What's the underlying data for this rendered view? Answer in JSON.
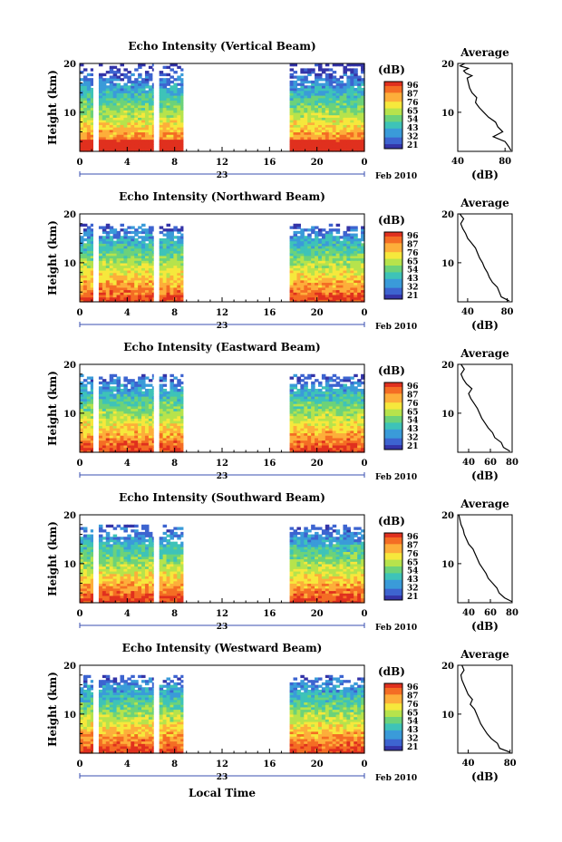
{
  "figure": {
    "xlabel": "Local Time",
    "date_label": "23",
    "month_label": "Feb 2010",
    "colorbar_unit": "(dB)",
    "colorbar_ticks": [
      "96",
      "87",
      "76",
      "65",
      "54",
      "43",
      "32",
      "21"
    ],
    "colorbar_colors": [
      "#e0301e",
      "#f46d24",
      "#fdae3a",
      "#f6e83c",
      "#b6e34c",
      "#6cd27a",
      "#3ec3b8",
      "#3a9bd9",
      "#3d64d0",
      "#3434a8"
    ],
    "avg_title": "Average",
    "avg_xlabel": "(dB)"
  },
  "chart_data": [
    {
      "type": "heatmap",
      "title": "Echo Intensity (Vertical Beam)",
      "ylabel": "Height (km)",
      "xlim": [
        0,
        24
      ],
      "ylim": [
        2,
        20
      ],
      "xticks": [
        "0",
        "4",
        "8",
        "12",
        "16",
        "20",
        "0"
      ],
      "yticks": [
        "20",
        "10"
      ],
      "data_segments": [
        [
          0,
          1.1
        ],
        [
          1.6,
          6.2
        ],
        [
          6.7,
          8.7
        ],
        [
          17.7,
          24
        ]
      ],
      "avg_profile": {
        "xlim": [
          40,
          86
        ],
        "xticks": [
          "40",
          "80"
        ],
        "ylim": [
          2,
          20
        ],
        "yticks": [
          "20",
          "10"
        ],
        "height_km": [
          2.2,
          3,
          4,
          5,
          6,
          7,
          8,
          9,
          10,
          11,
          12,
          13,
          14,
          15,
          16,
          17,
          17.5,
          18,
          18.5,
          19,
          19.5,
          20
        ],
        "intensity_db": [
          85,
          83,
          80,
          70,
          78,
          74,
          72,
          66,
          62,
          58,
          55,
          56,
          52,
          50,
          49,
          48,
          52,
          47,
          45,
          49,
          42,
          46
        ]
      }
    },
    {
      "type": "heatmap",
      "title": "Echo Intensity (Northward Beam)",
      "ylabel": "Height (km)",
      "xlim": [
        0,
        24
      ],
      "ylim": [
        2,
        20
      ],
      "xticks": [
        "0",
        "4",
        "8",
        "12",
        "16",
        "20",
        "0"
      ],
      "yticks": [
        "20",
        "10"
      ],
      "data_segments": [
        [
          0,
          1.1
        ],
        [
          1.6,
          6.2
        ],
        [
          6.7,
          8.7
        ],
        [
          17.7,
          24
        ]
      ],
      "avg_profile": {
        "xlim": [
          30,
          85
        ],
        "xticks": [
          "40",
          "80"
        ],
        "ylim": [
          2,
          20
        ],
        "yticks": [
          "20",
          "10"
        ],
        "height_km": [
          2.2,
          3,
          4,
          5,
          6,
          7,
          8,
          9,
          10,
          11,
          12,
          13,
          14,
          15,
          16,
          17,
          18,
          19,
          20
        ],
        "intensity_db": [
          82,
          74,
          72,
          70,
          65,
          62,
          60,
          57,
          55,
          52,
          50,
          48,
          44,
          40,
          38,
          35,
          33,
          36,
          32
        ]
      }
    },
    {
      "type": "heatmap",
      "title": "Echo Intensity (Eastward Beam)",
      "ylabel": "Height (km)",
      "xlim": [
        0,
        24
      ],
      "ylim": [
        2,
        20
      ],
      "xticks": [
        "0",
        "4",
        "8",
        "12",
        "16",
        "20",
        "0"
      ],
      "yticks": [
        "20",
        "10"
      ],
      "data_segments": [
        [
          0,
          1.1
        ],
        [
          1.6,
          6.2
        ],
        [
          6.7,
          8.7
        ],
        [
          17.7,
          24
        ]
      ],
      "avg_profile": {
        "xlim": [
          30,
          80
        ],
        "xticks": [
          "40",
          "60",
          "80"
        ],
        "ylim": [
          2,
          20
        ],
        "yticks": [
          "20",
          "10"
        ],
        "height_km": [
          2.2,
          3,
          4,
          5,
          6,
          7,
          8,
          9,
          10,
          11,
          12,
          13,
          14,
          15,
          16,
          17,
          18,
          19,
          20
        ],
        "intensity_db": [
          78,
          72,
          70,
          64,
          62,
          58,
          55,
          52,
          50,
          48,
          45,
          42,
          40,
          43,
          38,
          35,
          33,
          36,
          33
        ]
      }
    },
    {
      "type": "heatmap",
      "title": "Echo Intensity (Southward Beam)",
      "ylabel": "Height (km)",
      "xlim": [
        0,
        24
      ],
      "ylim": [
        2,
        20
      ],
      "xticks": [
        "0",
        "4",
        "8",
        "12",
        "16",
        "20",
        "0"
      ],
      "yticks": [
        "20",
        "10"
      ],
      "data_segments": [
        [
          0,
          1.1
        ],
        [
          1.6,
          6.2
        ],
        [
          6.7,
          8.7
        ],
        [
          17.7,
          24
        ]
      ],
      "avg_profile": {
        "xlim": [
          30,
          80
        ],
        "xticks": [
          "40",
          "60",
          "80"
        ],
        "ylim": [
          2,
          20
        ],
        "yticks": [
          "20",
          "10"
        ],
        "height_km": [
          2.2,
          3,
          4,
          5,
          6,
          7,
          8,
          9,
          10,
          11,
          12,
          13,
          14,
          15,
          16,
          17,
          18,
          19,
          20
        ],
        "intensity_db": [
          80,
          73,
          68,
          66,
          62,
          58,
          56,
          53,
          50,
          48,
          46,
          44,
          40,
          38,
          36,
          35,
          33,
          32,
          31
        ]
      }
    },
    {
      "type": "heatmap",
      "title": "Echo Intensity (Westward Beam)",
      "ylabel": "Height (km)",
      "xlim": [
        0,
        24
      ],
      "ylim": [
        2,
        20
      ],
      "xticks": [
        "0",
        "4",
        "8",
        "12",
        "16",
        "20",
        "0"
      ],
      "yticks": [
        "20",
        "10"
      ],
      "data_segments": [
        [
          0,
          1.1
        ],
        [
          1.6,
          6.2
        ],
        [
          6.7,
          8.7
        ],
        [
          17.7,
          24
        ]
      ],
      "avg_profile": {
        "xlim": [
          30,
          82
        ],
        "xticks": [
          "40",
          "80"
        ],
        "ylim": [
          2,
          20
        ],
        "yticks": [
          "20",
          "10"
        ],
        "height_km": [
          2.2,
          3,
          4,
          5,
          6,
          7,
          8,
          9,
          10,
          11,
          12,
          13,
          14,
          15,
          16,
          17,
          18,
          19,
          20
        ],
        "intensity_db": [
          80,
          70,
          68,
          62,
          58,
          55,
          52,
          50,
          48,
          46,
          42,
          44,
          40,
          38,
          36,
          34,
          33,
          36,
          34
        ]
      }
    }
  ]
}
